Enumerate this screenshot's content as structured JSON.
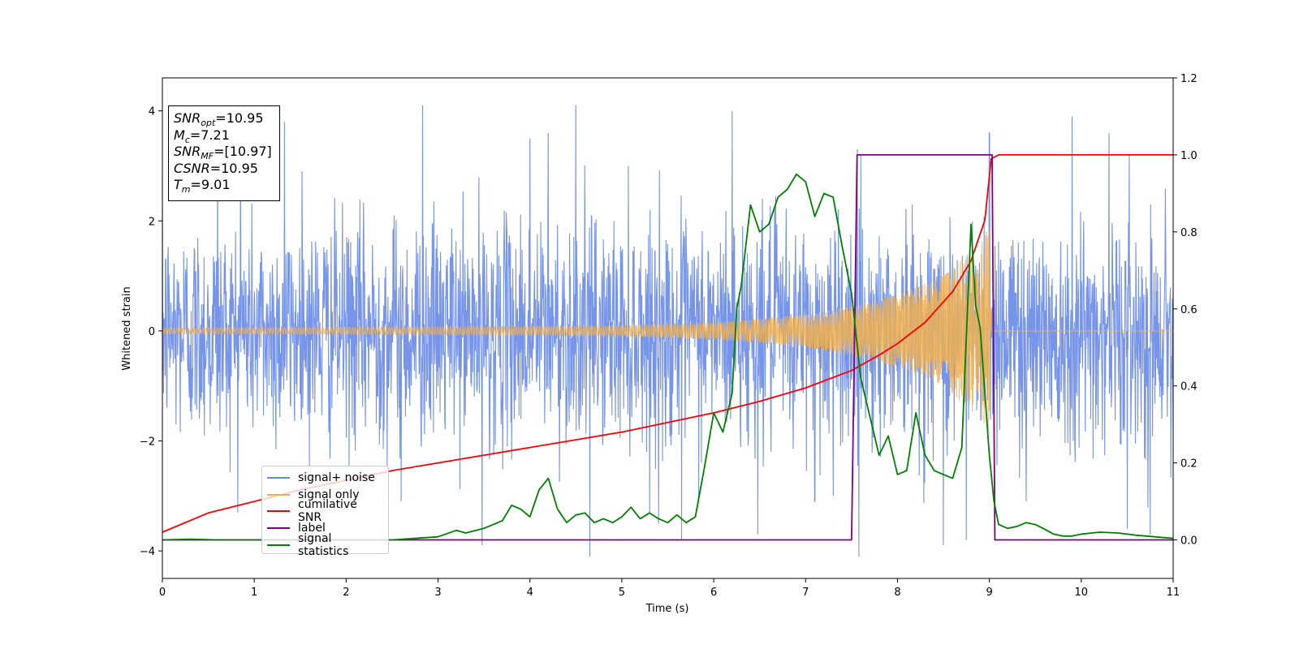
{
  "chart_data": {
    "type": "line",
    "xlabel": "Time (s)",
    "ylabel": "Whitened strain",
    "xlim": [
      0,
      11
    ],
    "ylim_left": [
      -4.5,
      4.6
    ],
    "ylim_right": [
      -0.1,
      1.2
    ],
    "x_ticks": [
      "0",
      "1",
      "2",
      "3",
      "4",
      "5",
      "6",
      "7",
      "8",
      "9",
      "10",
      "11"
    ],
    "y_ticks_left": [
      "−4",
      "−2",
      "0",
      "2",
      "4"
    ],
    "y_ticks_right": [
      "0.0",
      "0.2",
      "0.4",
      "0.6",
      "0.8",
      "1.0",
      "1.2"
    ],
    "series": [
      {
        "name": "signal+ noise",
        "axis": "left",
        "color": "#6688e8",
        "kind": "noise",
        "std": 1.0,
        "t_range": [
          0,
          11
        ],
        "peak_samples": [
          [
            0.6,
            3.6
          ],
          [
            0.85,
            3.7
          ],
          [
            1.33,
            3.8
          ],
          [
            1.52,
            2.9
          ],
          [
            2.6,
            -3.1
          ],
          [
            2.83,
            4.1
          ],
          [
            3.48,
            -3.9
          ],
          [
            4.0,
            3.5
          ],
          [
            4.2,
            3.6
          ],
          [
            4.5,
            4.1
          ],
          [
            4.65,
            -4.1
          ],
          [
            5.4,
            -3.5
          ],
          [
            5.65,
            -3.8
          ],
          [
            6.2,
            4.0
          ],
          [
            6.48,
            -3.7
          ],
          [
            7.1,
            -3.1
          ],
          [
            7.3,
            -3.0
          ],
          [
            7.58,
            -4.1
          ],
          [
            7.6,
            3.2
          ],
          [
            8.5,
            -3.9
          ],
          [
            8.75,
            -3.8
          ],
          [
            9.0,
            3.6
          ],
          [
            9.4,
            -3.1
          ],
          [
            9.9,
            3.9
          ],
          [
            10.3,
            3.6
          ],
          [
            10.5,
            -3.6
          ],
          [
            10.75,
            -3.7
          ]
        ]
      },
      {
        "name": "signal only",
        "axis": "left",
        "color": "#f0b050",
        "kind": "chirp",
        "amplitude_points": [
          [
            0.0,
            0.05
          ],
          [
            3.0,
            0.07
          ],
          [
            5.0,
            0.1
          ],
          [
            6.0,
            0.15
          ],
          [
            7.0,
            0.3
          ],
          [
            7.5,
            0.45
          ],
          [
            8.0,
            0.65
          ],
          [
            8.5,
            1.0
          ],
          [
            8.9,
            1.6
          ],
          [
            9.0,
            1.9
          ],
          [
            9.02,
            0.0
          ],
          [
            11.0,
            0.0
          ]
        ]
      },
      {
        "name": "cumilative SNR",
        "axis": "right",
        "color": "#ff0000",
        "x": [
          0.0,
          0.5,
          1.0,
          1.5,
          2.0,
          2.5,
          3.0,
          3.5,
          4.0,
          4.5,
          5.0,
          5.5,
          6.0,
          6.5,
          7.0,
          7.5,
          7.8,
          8.0,
          8.3,
          8.6,
          8.8,
          8.95,
          9.02,
          9.1,
          11.0
        ],
        "y": [
          0.02,
          0.07,
          0.1,
          0.13,
          0.155,
          0.18,
          0.2,
          0.22,
          0.24,
          0.26,
          0.28,
          0.305,
          0.33,
          0.36,
          0.395,
          0.44,
          0.48,
          0.51,
          0.565,
          0.645,
          0.725,
          0.83,
          0.99,
          1.0,
          1.0
        ]
      },
      {
        "name": "label",
        "axis": "right",
        "color": "#800080",
        "x": [
          0.0,
          7.5,
          7.56,
          9.03,
          9.06,
          11.0
        ],
        "y": [
          0.0,
          0.0,
          1.0,
          1.0,
          0.0,
          0.0
        ]
      },
      {
        "name": "signal statistics",
        "axis": "right",
        "color": "#008000",
        "x": [
          0.0,
          0.3,
          0.6,
          1.0,
          1.5,
          2.0,
          2.5,
          3.0,
          3.2,
          3.3,
          3.5,
          3.7,
          3.8,
          3.9,
          4.0,
          4.1,
          4.2,
          4.3,
          4.4,
          4.5,
          4.6,
          4.7,
          4.8,
          4.9,
          5.0,
          5.1,
          5.2,
          5.3,
          5.4,
          5.5,
          5.6,
          5.7,
          5.8,
          5.9,
          6.0,
          6.1,
          6.2,
          6.25,
          6.3,
          6.4,
          6.5,
          6.6,
          6.7,
          6.8,
          6.9,
          7.0,
          7.1,
          7.2,
          7.3,
          7.4,
          7.5,
          7.6,
          7.7,
          7.8,
          7.9,
          8.0,
          8.1,
          8.2,
          8.3,
          8.4,
          8.5,
          8.6,
          8.7,
          8.8,
          8.85,
          8.9,
          9.0,
          9.05,
          9.1,
          9.2,
          9.3,
          9.4,
          9.5,
          9.6,
          9.7,
          9.8,
          9.9,
          10.0,
          10.2,
          10.4,
          10.6,
          10.8,
          11.0
        ],
        "y": [
          0.0,
          0.002,
          0.0,
          0.0,
          0.0,
          0.0,
          0.0,
          0.008,
          0.025,
          0.018,
          0.03,
          0.05,
          0.09,
          0.08,
          0.06,
          0.13,
          0.16,
          0.08,
          0.045,
          0.065,
          0.07,
          0.045,
          0.055,
          0.045,
          0.06,
          0.085,
          0.055,
          0.07,
          0.055,
          0.045,
          0.065,
          0.045,
          0.06,
          0.19,
          0.33,
          0.28,
          0.38,
          0.6,
          0.66,
          0.87,
          0.8,
          0.82,
          0.89,
          0.91,
          0.95,
          0.93,
          0.84,
          0.9,
          0.89,
          0.76,
          0.64,
          0.42,
          0.32,
          0.22,
          0.27,
          0.17,
          0.18,
          0.33,
          0.22,
          0.18,
          0.17,
          0.16,
          0.24,
          0.82,
          0.61,
          0.55,
          0.22,
          0.1,
          0.04,
          0.03,
          0.035,
          0.045,
          0.04,
          0.028,
          0.015,
          0.01,
          0.01,
          0.015,
          0.02,
          0.018,
          0.012,
          0.008,
          0.004
        ]
      }
    ],
    "legend_position": "lower left"
  },
  "info_box": {
    "snr_opt_label": "SNR",
    "snr_opt_sub": "opt",
    "snr_opt_value": "=10.95",
    "mc_label": "M",
    "mc_sub": "c",
    "mc_value": "=7.21",
    "snr_mf_label": "SNR",
    "snr_mf_sub": "MF",
    "snr_mf_value": "=[10.97]",
    "csnr_label": "CSNR",
    "csnr_value": "=10.95",
    "tm_label": "T",
    "tm_sub": "m",
    "tm_value": "=9.01"
  }
}
